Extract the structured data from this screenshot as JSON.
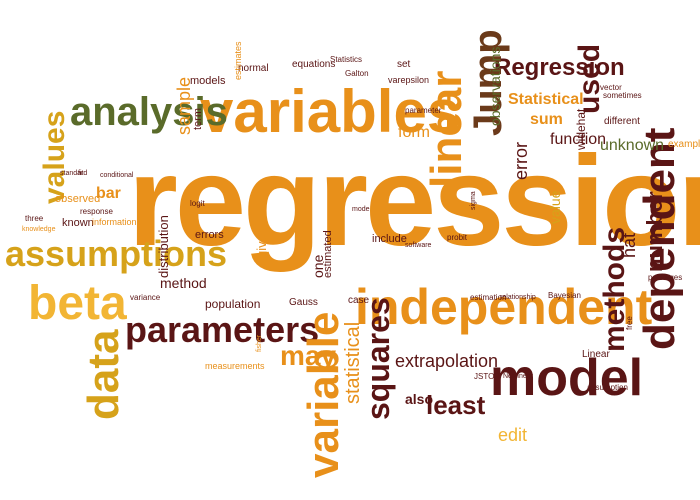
{
  "word_cloud": {
    "words": [
      {
        "text": "regression"
      },
      {
        "text": "variables"
      },
      {
        "text": "independent"
      },
      {
        "text": "model"
      },
      {
        "text": "dependent"
      },
      {
        "text": "linear"
      },
      {
        "text": "analysis"
      },
      {
        "text": "parameters"
      },
      {
        "text": "beta"
      },
      {
        "text": "data"
      },
      {
        "text": "variable"
      },
      {
        "text": "assumptions"
      },
      {
        "text": "Regression"
      },
      {
        "text": "Jump"
      },
      {
        "text": "used"
      },
      {
        "text": "values"
      },
      {
        "text": "squares"
      },
      {
        "text": "statistical"
      },
      {
        "text": "least"
      },
      {
        "text": "may"
      },
      {
        "text": "number"
      },
      {
        "text": "methods"
      },
      {
        "text": "extrapolation"
      },
      {
        "text": "edit"
      },
      {
        "text": "also"
      },
      {
        "text": "Statistical"
      },
      {
        "text": "sum"
      },
      {
        "text": "function"
      },
      {
        "text": "unknown"
      },
      {
        "text": "form"
      },
      {
        "text": "sample"
      },
      {
        "text": "error"
      },
      {
        "text": "observations"
      },
      {
        "text": "hat"
      },
      {
        "text": "value"
      },
      {
        "text": "widehat"
      },
      {
        "text": "method"
      },
      {
        "text": "distribution"
      },
      {
        "text": "errors"
      },
      {
        "text": "observed"
      },
      {
        "text": "known"
      },
      {
        "text": "bar"
      },
      {
        "text": "population"
      },
      {
        "text": "one"
      },
      {
        "text": "include"
      },
      {
        "text": "estimated"
      },
      {
        "text": "models"
      },
      {
        "text": "normal"
      },
      {
        "text": "equations"
      },
      {
        "text": "term"
      },
      {
        "text": "given"
      },
      {
        "text": "Gauss"
      },
      {
        "text": "case"
      },
      {
        "text": "Linear"
      },
      {
        "text": "different"
      },
      {
        "text": "example"
      },
      {
        "text": "information"
      },
      {
        "text": "response"
      },
      {
        "text": "parameter"
      },
      {
        "text": "varepsilon"
      },
      {
        "text": "Galton"
      },
      {
        "text": "set"
      },
      {
        "text": "Statistics"
      },
      {
        "text": "estimates"
      },
      {
        "text": "sometimes"
      },
      {
        "text": "vector"
      },
      {
        "text": "estimation"
      },
      {
        "text": "relationship"
      },
      {
        "text": "Bayesian"
      },
      {
        "text": "measurements"
      },
      {
        "text": "variance"
      },
      {
        "text": "assumption"
      },
      {
        "text": "JSTOR"
      },
      {
        "text": "Nonlinear"
      },
      {
        "text": "free"
      },
      {
        "text": "packages"
      },
      {
        "text": "logit"
      },
      {
        "text": "probit"
      },
      {
        "text": "mode"
      },
      {
        "text": "three"
      },
      {
        "text": "conditional"
      },
      {
        "text": "standard"
      },
      {
        "text": "knowledge"
      },
      {
        "text": "fisher"
      },
      {
        "text": "software"
      },
      {
        "text": "sigma"
      },
      {
        "text": "fit"
      }
    ]
  }
}
